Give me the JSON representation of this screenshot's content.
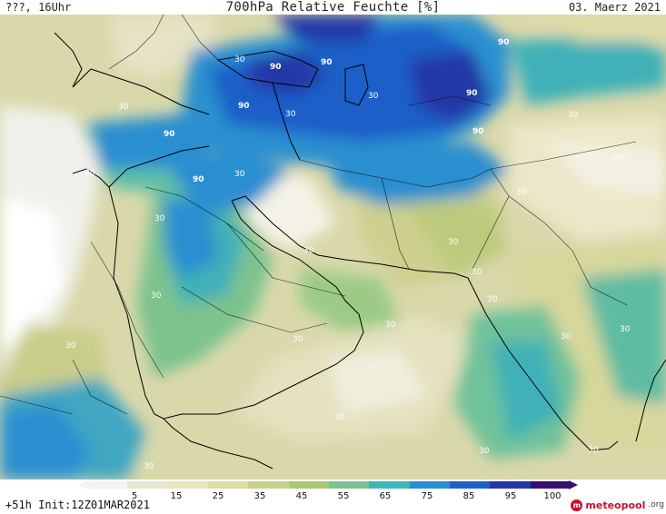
{
  "header": {
    "left": "???, 16Uhr",
    "title": "700hPa Relative Feuchte [%]",
    "date": "03. Maerz 2021"
  },
  "footer": {
    "run_info": "+51h Init:12Z01MAR2021",
    "brand_name": "meteopool",
    "brand_tld": ".org"
  },
  "legend": {
    "tick_labels": [
      "5",
      "15",
      "25",
      "35",
      "45",
      "55",
      "65",
      "75",
      "85",
      "95",
      "100"
    ],
    "colors": [
      "#f3f3f3",
      "#e6e6d2",
      "#e8e6c0",
      "#dedca6",
      "#c9d18a",
      "#a9c978",
      "#7cc292",
      "#41b6b6",
      "#2a8fd0",
      "#1f5fc8",
      "#2437a6",
      "#3a0f6e"
    ]
  },
  "map": {
    "region": "Middle East / South Asia",
    "contour_labels": [
      "90",
      "90",
      "90",
      "90",
      "90",
      "90",
      "90",
      "90",
      "30",
      "30",
      "30",
      "30",
      "30",
      "30",
      "30",
      "30",
      "30",
      "30",
      "30",
      "30",
      "30",
      "30",
      "30",
      "30",
      "30",
      "30",
      "30",
      "30",
      "30",
      "30",
      "30",
      "30"
    ]
  }
}
